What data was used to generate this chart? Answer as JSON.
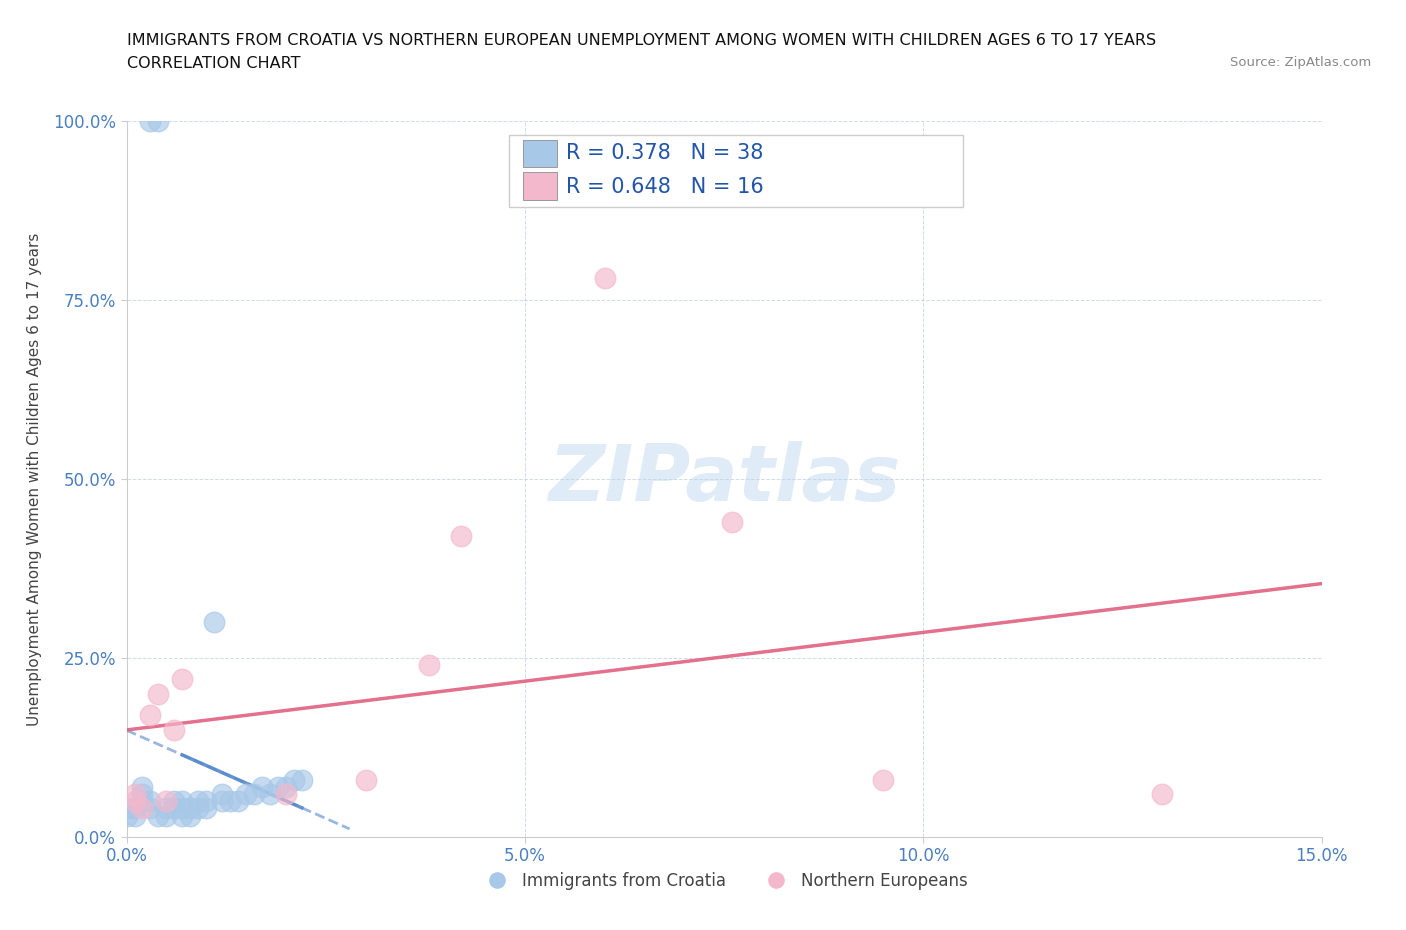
{
  "title_line1": "IMMIGRANTS FROM CROATIA VS NORTHERN EUROPEAN UNEMPLOYMENT AMONG WOMEN WITH CHILDREN AGES 6 TO 17 YEARS",
  "title_line2": "CORRELATION CHART",
  "source_text": "Source: ZipAtlas.com",
  "ylabel": "Unemployment Among Women with Children Ages 6 to 17 years",
  "xlim": [
    0.0,
    0.15
  ],
  "ylim": [
    0.0,
    1.0
  ],
  "xticks": [
    0.0,
    0.05,
    0.1,
    0.15
  ],
  "xtick_labels": [
    "0.0%",
    "5.0%",
    "10.0%",
    "15.0%"
  ],
  "yticks": [
    0.0,
    0.25,
    0.5,
    0.75,
    1.0
  ],
  "ytick_labels": [
    "0.0%",
    "25.0%",
    "50.0%",
    "75.0%",
    "100.0%"
  ],
  "blue_label": "Immigrants from Croatia",
  "pink_label": "Northern Europeans",
  "blue_R": 0.378,
  "blue_N": 38,
  "pink_R": 0.648,
  "pink_N": 16,
  "blue_color": "#a8c8e8",
  "pink_color": "#f4b8cc",
  "blue_line_color": "#5588cc",
  "pink_line_color": "#e06080",
  "watermark": "ZIPatlas",
  "blue_scatter_x": [
    0.003,
    0.004,
    0.0,
    0.0,
    0.001,
    0.001,
    0.002,
    0.002,
    0.002,
    0.003,
    0.003,
    0.004,
    0.005,
    0.005,
    0.006,
    0.006,
    0.007,
    0.007,
    0.007,
    0.008,
    0.008,
    0.009,
    0.009,
    0.01,
    0.01,
    0.011,
    0.012,
    0.012,
    0.013,
    0.014,
    0.015,
    0.016,
    0.017,
    0.018,
    0.019,
    0.02,
    0.021,
    0.022
  ],
  "blue_scatter_y": [
    1.0,
    1.0,
    0.03,
    0.04,
    0.03,
    0.04,
    0.05,
    0.06,
    0.07,
    0.04,
    0.05,
    0.03,
    0.03,
    0.04,
    0.04,
    0.05,
    0.03,
    0.04,
    0.05,
    0.03,
    0.04,
    0.04,
    0.05,
    0.04,
    0.05,
    0.3,
    0.05,
    0.06,
    0.05,
    0.05,
    0.06,
    0.06,
    0.07,
    0.06,
    0.07,
    0.07,
    0.08,
    0.08
  ],
  "pink_scatter_x": [
    0.001,
    0.001,
    0.002,
    0.003,
    0.004,
    0.005,
    0.006,
    0.007,
    0.02,
    0.03,
    0.038,
    0.042,
    0.06,
    0.076,
    0.095,
    0.13
  ],
  "pink_scatter_y": [
    0.05,
    0.06,
    0.04,
    0.17,
    0.2,
    0.05,
    0.15,
    0.22,
    0.06,
    0.08,
    0.24,
    0.42,
    0.78,
    0.44,
    0.08,
    0.06
  ]
}
